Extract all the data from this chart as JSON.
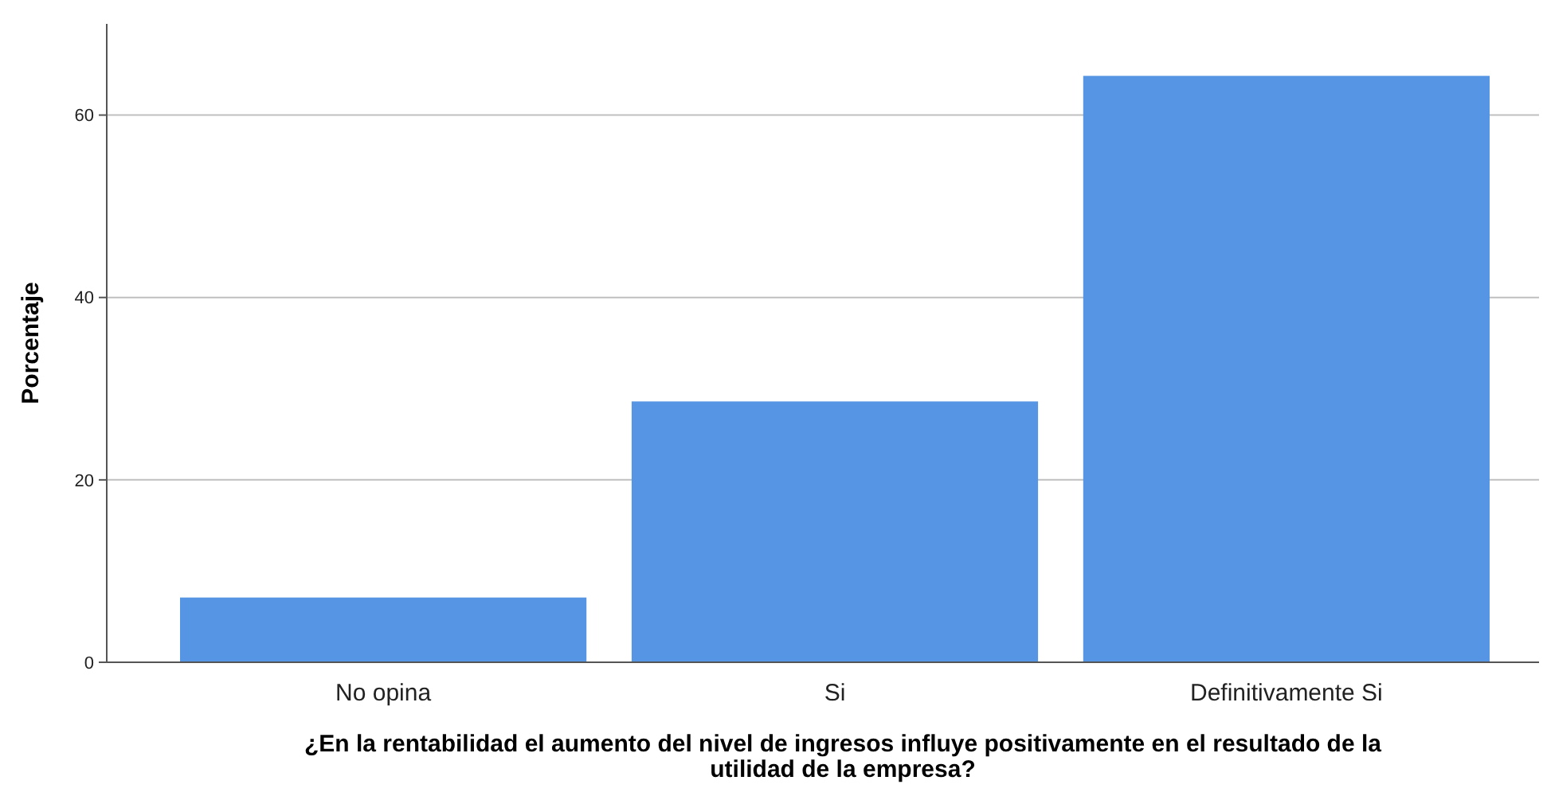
{
  "chart_data": {
    "type": "bar",
    "xlabel": "¿En la rentabilidad el aumento del nivel de ingresos influye positivamente en el resultado de la utilidad de la empresa?",
    "ylabel": "Porcentaje",
    "categories": [
      "No opina",
      "Si",
      "Definitivamente Si"
    ],
    "values": [
      7.1,
      28.6,
      64.3
    ],
    "color": "#5595e3",
    "ylim": [
      0,
      70
    ],
    "yticks": [
      0,
      20,
      40,
      60
    ],
    "grid": "y"
  }
}
